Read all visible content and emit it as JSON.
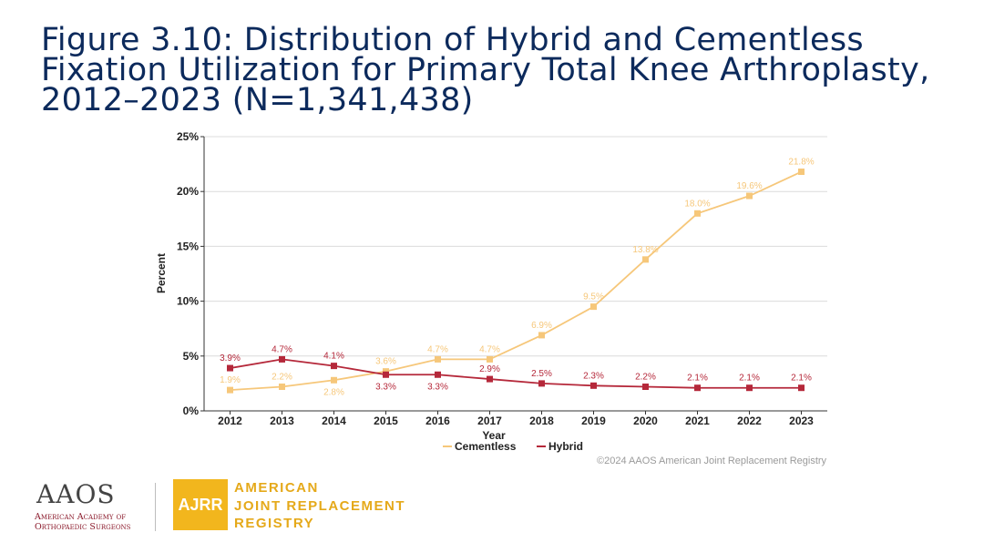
{
  "title": "Figure 3.10: Distribution of Hybrid and Cementless Fixation Utilization for Primary Total Knee Arthroplasty, 2012–2023 (N=1,341,438)",
  "copyright": "©2024 AAOS American Joint Replacement Registry",
  "logos": {
    "aaos_mark": "AAOS",
    "aaos_line1": "American Academy of",
    "aaos_line2": "Orthopaedic Surgeons",
    "ajrr_badge": "AJRR",
    "ajrr_line1": "AMERICAN",
    "ajrr_line2": "JOINT REPLACEMENT",
    "ajrr_line3": "REGISTRY"
  },
  "colors": {
    "cementless": "#f6c77a",
    "hybrid": "#b5283a",
    "title": "#0c2a5c"
  },
  "chart_data": {
    "type": "line",
    "xlabel": "Year",
    "ylabel": "Percent",
    "ylim": [
      0,
      25
    ],
    "yticks": [
      "0%",
      "5%",
      "10%",
      "15%",
      "20%",
      "25%"
    ],
    "categories": [
      "2012",
      "2013",
      "2014",
      "2015",
      "2016",
      "2017",
      "2018",
      "2019",
      "2020",
      "2021",
      "2022",
      "2023"
    ],
    "grid": true,
    "legend_position": "bottom",
    "series": [
      {
        "name": "Cementless",
        "values": [
          1.9,
          2.2,
          2.8,
          3.6,
          4.7,
          4.7,
          6.9,
          9.5,
          13.8,
          18.0,
          19.6,
          21.8
        ],
        "labels": [
          "1.9%",
          "2.2%",
          "2.8%",
          "3.6%",
          "4.7%",
          "4.7%",
          "6.9%",
          "9.5%",
          "13.8%",
          "18.0%",
          "19.6%",
          "21.8%"
        ]
      },
      {
        "name": "Hybrid",
        "values": [
          3.9,
          4.7,
          4.1,
          3.3,
          3.3,
          2.9,
          2.5,
          2.3,
          2.2,
          2.1,
          2.1,
          2.1
        ],
        "labels": [
          "3.9%",
          "4.7%",
          "4.1%",
          "3.3%",
          "3.3%",
          "2.9%",
          "2.5%",
          "2.3%",
          "2.2%",
          "2.1%",
          "2.1%",
          "2.1%"
        ]
      }
    ]
  }
}
